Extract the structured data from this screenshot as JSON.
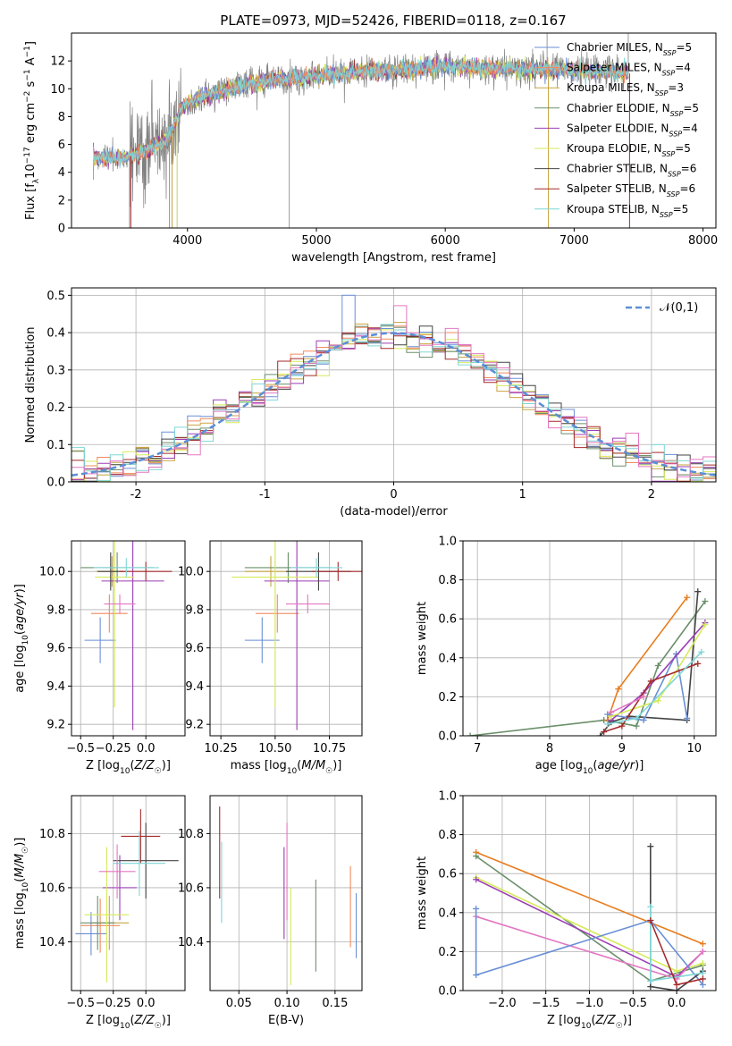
{
  "title": "PLATE=0973, MJD=52426, FIBERID=0118, z=0.167",
  "colors": {
    "chabrier_miles": "#6a8fd6",
    "salpeter_miles": "#f08a5d",
    "kroupa_miles": "#c7a442",
    "chabrier_elodie": "#6b8f6b",
    "salpeter_elodie": "#9b3fb5",
    "kroupa_elodie": "#d6ea5a",
    "chabrier_stelib": "#444444",
    "salpeter_stelib": "#a52a2a",
    "kroupa_stelib": "#7fd6d6",
    "data": "#808080",
    "normal": "#5b8fd6",
    "orange_line": "#e87c1e",
    "pink_line": "#e377c2"
  },
  "legend": [
    {
      "label": "Chabrier MILES, N_SSP=5",
      "color_key": "chabrier_miles"
    },
    {
      "label": "Salpeter MILES, N_SSP=4",
      "color_key": "salpeter_miles"
    },
    {
      "label": "Kroupa MILES, N_SSP=3",
      "color_key": "kroupa_miles"
    },
    {
      "label": "Chabrier ELODIE, N_SSP=5",
      "color_key": "chabrier_elodie"
    },
    {
      "label": "Salpeter ELODIE, N_SSP=4",
      "color_key": "salpeter_elodie"
    },
    {
      "label": "Kroupa ELODIE, N_SSP=5",
      "color_key": "kroupa_elodie"
    },
    {
      "label": "Chabrier STELIB, N_SSP=6",
      "color_key": "chabrier_stelib"
    },
    {
      "label": "Salpeter STELIB, N_SSP=6",
      "color_key": "salpeter_stelib"
    },
    {
      "label": "Kroupa STELIB, N_SSP=5",
      "color_key": "kroupa_stelib"
    }
  ],
  "chart_data": [
    {
      "id": "spectrum",
      "type": "line",
      "xlabel": "wavelength [Angstrom, rest frame]",
      "ylabel": "Flux [f_λ 10^-17 erg cm^-2 s^-1 A^-1]",
      "xlim": [
        3100,
        8100
      ],
      "ylim": [
        0,
        14
      ],
      "xticks": [
        4000,
        5000,
        6000,
        7000,
        8000
      ],
      "yticks": [
        0,
        2,
        4,
        6,
        8,
        10,
        12
      ],
      "grid": false,
      "legend_position": "right",
      "x_range_data": [
        3270,
        7420
      ],
      "continuum": [
        [
          3270,
          5.1
        ],
        [
          3500,
          5.0
        ],
        [
          3700,
          5.6
        ],
        [
          3850,
          6.4
        ],
        [
          3950,
          8.6
        ],
        [
          4100,
          9.4
        ],
        [
          4300,
          9.9
        ],
        [
          4600,
          10.6
        ],
        [
          5000,
          10.9
        ],
        [
          5500,
          11.3
        ],
        [
          6000,
          11.6
        ],
        [
          6500,
          11.4
        ],
        [
          7000,
          11.4
        ],
        [
          7420,
          11.1
        ]
      ]
    },
    {
      "id": "residuals",
      "type": "histogram",
      "xlabel": "(data-model)/error",
      "ylabel": "Normed distribution",
      "xlim": [
        -2.5,
        2.5
      ],
      "ylim": [
        0,
        0.52
      ],
      "xticks": [
        -2,
        -1,
        0,
        1,
        2
      ],
      "yticks": [
        0,
        0.1,
        0.2,
        0.3,
        0.4,
        0.5
      ],
      "grid": true,
      "legend": "𝒩(0,1)",
      "legend_position": "top-right",
      "bin_width": 0.1,
      "peak_value": 0.5
    },
    {
      "id": "age_vs_Z",
      "type": "errorbar",
      "xlabel": "Z [log10(Z/Z☉)]",
      "ylabel": "age [log10(age/yr)]",
      "xlim": [
        -0.57,
        0.3
      ],
      "ylim": [
        9.14,
        10.16
      ],
      "xticks": [
        -0.5,
        -0.25,
        0.0
      ],
      "yticks": [
        9.2,
        9.4,
        9.6,
        9.8,
        10.0
      ],
      "grid": true,
      "points": [
        {
          "key": "chabrier_miles",
          "x": -0.35,
          "y": 9.64,
          "xerr": 0.12,
          "yerr": 0.12
        },
        {
          "key": "salpeter_miles",
          "x": -0.28,
          "y": 9.78,
          "xerr": 0.14,
          "yerr": 0.1
        },
        {
          "key": "kroupa_miles",
          "x": -0.26,
          "y": 10.0,
          "xerr": 0.12,
          "yerr": 0.08
        },
        {
          "key": "chabrier_elodie",
          "x": -0.22,
          "y": 10.02,
          "xerr": 0.28,
          "yerr": 0.08
        },
        {
          "key": "salpeter_elodie",
          "x": -0.1,
          "y": 9.95,
          "xerr": 0.24,
          "yerr": 0.78
        },
        {
          "key": "kroupa_elodie",
          "x": -0.24,
          "y": 9.97,
          "xerr": 0.15,
          "yerr": 0.68
        },
        {
          "key": "chabrier_stelib",
          "x": -0.27,
          "y": 10.0,
          "xerr": 0.1,
          "yerr": 0.1
        },
        {
          "key": "salpeter_stelib",
          "x": 0.0,
          "y": 10.0,
          "xerr": 0.2,
          "yerr": 0.05
        },
        {
          "key": "kroupa_stelib",
          "x": -0.15,
          "y": 10.02,
          "xerr": 0.25,
          "yerr": 0.05
        },
        {
          "key": "pink_line",
          "x": -0.2,
          "y": 9.83,
          "xerr": 0.12,
          "yerr": 0.05
        }
      ]
    },
    {
      "id": "age_vs_mass",
      "type": "errorbar",
      "xlabel": "mass [log10(M/M☉)]",
      "ylabel": "",
      "xlim": [
        10.2,
        10.9
      ],
      "ylim": [
        9.14,
        10.16
      ],
      "xticks": [
        10.25,
        10.5,
        10.75
      ],
      "yticks": [
        9.2,
        9.4,
        9.6,
        9.8,
        10.0
      ],
      "grid": true,
      "points": [
        {
          "key": "chabrier_miles",
          "x": 10.44,
          "y": 9.64,
          "xerr": 0.08,
          "yerr": 0.12
        },
        {
          "key": "salpeter_miles",
          "x": 10.51,
          "y": 9.78,
          "xerr": 0.1,
          "yerr": 0.1
        },
        {
          "key": "kroupa_miles",
          "x": 10.48,
          "y": 10.0,
          "xerr": 0.12,
          "yerr": 0.08
        },
        {
          "key": "chabrier_elodie",
          "x": 10.56,
          "y": 10.02,
          "xerr": 0.2,
          "yerr": 0.08
        },
        {
          "key": "salpeter_elodie",
          "x": 10.6,
          "y": 9.95,
          "xerr": 0.15,
          "yerr": 0.78
        },
        {
          "key": "kroupa_elodie",
          "x": 10.5,
          "y": 9.97,
          "xerr": 0.2,
          "yerr": 0.68
        },
        {
          "key": "chabrier_stelib",
          "x": 10.7,
          "y": 10.0,
          "xerr": 0.15,
          "yerr": 0.1
        },
        {
          "key": "salpeter_stelib",
          "x": 10.79,
          "y": 10.0,
          "xerr": 0.12,
          "yerr": 0.05
        },
        {
          "key": "kroupa_stelib",
          "x": 10.69,
          "y": 10.02,
          "xerr": 0.12,
          "yerr": 0.05
        },
        {
          "key": "pink_line",
          "x": 10.65,
          "y": 9.83,
          "xerr": 0.1,
          "yerr": 0.05
        }
      ]
    },
    {
      "id": "mass_weight_vs_age",
      "type": "line",
      "xlabel": "age [log10(age/yr)]",
      "ylabel": "mass weight",
      "xlim": [
        6.8,
        10.3
      ],
      "ylim": [
        0,
        1.0
      ],
      "xticks": [
        7,
        8,
        9,
        10
      ],
      "yticks": [
        0.0,
        0.2,
        0.4,
        0.6,
        0.8,
        1.0
      ],
      "grid": true,
      "series": [
        {
          "key": "chabrier_elodie",
          "x": [
            6.9,
            8.75,
            9.2,
            9.5,
            10.15
          ],
          "y": [
            0.0,
            0.08,
            0.05,
            0.36,
            0.69
          ]
        },
        {
          "key": "orange_line",
          "x": [
            8.8,
            8.95,
            9.9
          ],
          "y": [
            0.08,
            0.24,
            0.71
          ]
        },
        {
          "key": "chabrier_stelib",
          "x": [
            8.7,
            8.85,
            9.1,
            9.9,
            10.05
          ],
          "y": [
            0.0,
            0.07,
            0.1,
            0.08,
            0.74
          ]
        },
        {
          "key": "chabrier_miles",
          "x": [
            8.8,
            9.3,
            9.75,
            9.9
          ],
          "y": [
            0.11,
            0.08,
            0.42,
            0.09
          ]
        },
        {
          "key": "salpeter_elodie",
          "x": [
            8.85,
            9.3,
            10.15
          ],
          "y": [
            0.08,
            0.22,
            0.58
          ]
        },
        {
          "key": "kroupa_elodie",
          "x": [
            8.85,
            9.5,
            10.15
          ],
          "y": [
            0.1,
            0.18,
            0.57
          ]
        },
        {
          "key": "salpeter_stelib",
          "x": [
            8.75,
            9.0,
            9.4,
            10.05
          ],
          "y": [
            0.02,
            0.05,
            0.28,
            0.37
          ]
        },
        {
          "key": "kroupa_stelib",
          "x": [
            8.8,
            9.2,
            10.1
          ],
          "y": [
            0.06,
            0.09,
            0.43
          ]
        },
        {
          "key": "pink_line",
          "x": [
            8.85,
            9.3
          ],
          "y": [
            0.12,
            0.2
          ]
        }
      ]
    },
    {
      "id": "mass_vs_Z",
      "type": "errorbar",
      "xlabel": "Z [log10(Z/Z☉)]",
      "ylabel": "mass [log10(M/M☉)]",
      "xlim": [
        -0.57,
        0.3
      ],
      "ylim": [
        10.22,
        10.94
      ],
      "xticks": [
        -0.5,
        -0.25,
        0.0
      ],
      "yticks": [
        10.4,
        10.6,
        10.8
      ],
      "grid": true,
      "points": [
        {
          "key": "chabrier_miles",
          "x": -0.42,
          "y": 10.43,
          "xerr": 0.12,
          "yerr": 0.08
        },
        {
          "key": "salpeter_miles",
          "x": -0.35,
          "y": 10.46,
          "xerr": 0.15,
          "yerr": 0.1
        },
        {
          "key": "kroupa_miles",
          "x": -0.28,
          "y": 10.47,
          "xerr": 0.15,
          "yerr": 0.1
        },
        {
          "key": "chabrier_elodie",
          "x": -0.37,
          "y": 10.47,
          "xerr": 0.13,
          "yerr": 0.1
        },
        {
          "key": "salpeter_elodie",
          "x": -0.2,
          "y": 10.6,
          "xerr": 0.13,
          "yerr": 0.12
        },
        {
          "key": "kroupa_elodie",
          "x": -0.3,
          "y": 10.5,
          "xerr": 0.17,
          "yerr": 0.25
        },
        {
          "key": "chabrier_stelib",
          "x": 0.0,
          "y": 10.7,
          "xerr": 0.25,
          "yerr": 0.14
        },
        {
          "key": "salpeter_stelib",
          "x": -0.04,
          "y": 10.79,
          "xerr": 0.15,
          "yerr": 0.1
        },
        {
          "key": "kroupa_stelib",
          "x": -0.05,
          "y": 10.69,
          "xerr": 0.2,
          "yerr": 0.12
        },
        {
          "key": "pink_line",
          "x": -0.22,
          "y": 10.66,
          "xerr": 0.14,
          "yerr": 0.1
        }
      ]
    },
    {
      "id": "mass_vs_ebv",
      "type": "errorbar",
      "xlabel": "E(B-V)",
      "ylabel": "",
      "xlim": [
        0.02,
        0.178
      ],
      "ylim": [
        10.22,
        10.94
      ],
      "xticks": [
        0.05,
        0.1,
        0.15
      ],
      "yticks": [
        10.4,
        10.6,
        10.8
      ],
      "grid": true,
      "points": [
        {
          "key": "salpeter_stelib",
          "x": 0.03,
          "y": 10.73,
          "xerr": 0,
          "yerr": 0.17
        },
        {
          "key": "kroupa_stelib",
          "x": 0.032,
          "y": 10.62,
          "xerr": 0,
          "yerr": 0.15
        },
        {
          "key": "salpeter_elodie",
          "x": 0.097,
          "y": 10.58,
          "xerr": 0,
          "yerr": 0.17
        },
        {
          "key": "pink_line",
          "x": 0.1,
          "y": 10.66,
          "xerr": 0,
          "yerr": 0.18
        },
        {
          "key": "kroupa_elodie",
          "x": 0.104,
          "y": 10.42,
          "xerr": 0,
          "yerr": 0.18
        },
        {
          "key": "chabrier_elodie",
          "x": 0.13,
          "y": 10.46,
          "xerr": 0,
          "yerr": 0.17
        },
        {
          "key": "salpeter_miles",
          "x": 0.166,
          "y": 10.53,
          "xerr": 0,
          "yerr": 0.15
        },
        {
          "key": "chabrier_miles",
          "x": 0.172,
          "y": 10.46,
          "xerr": 0,
          "yerr": 0.12
        }
      ]
    },
    {
      "id": "mass_weight_vs_Z",
      "type": "line",
      "xlabel": "Z [log10(Z/Z☉)]",
      "ylabel": "mass weight",
      "xlim": [
        -2.45,
        0.45
      ],
      "ylim": [
        0,
        1.0
      ],
      "xticks": [
        -2.0,
        -1.5,
        -1.0,
        -0.5,
        0.0
      ],
      "yticks": [
        0.0,
        0.2,
        0.4,
        0.6,
        0.8,
        1.0
      ],
      "grid": true,
      "series": [
        {
          "key": "orange_line",
          "x": [
            -2.3,
            0.3
          ],
          "y": [
            0.71,
            0.24
          ]
        },
        {
          "key": "chabrier_elodie",
          "x": [
            -2.3,
            -0.3,
            0.3
          ],
          "y": [
            0.69,
            0.05,
            0.13
          ]
        },
        {
          "key": "kroupa_elodie",
          "x": [
            -2.3,
            0.0,
            0.3
          ],
          "y": [
            0.58,
            0.1,
            0.14
          ]
        },
        {
          "key": "salpeter_elodie",
          "x": [
            -2.3,
            0.0,
            0.3
          ],
          "y": [
            0.57,
            0.07,
            0.2
          ]
        },
        {
          "key": "pink_line",
          "x": [
            -2.3,
            0.0,
            0.3
          ],
          "y": [
            0.38,
            0.06,
            0.2
          ]
        },
        {
          "key": "chabrier_miles",
          "x": [
            -2.3,
            -2.3,
            -0.3,
            0.3
          ],
          "y": [
            0.42,
            0.08,
            0.36,
            0.03
          ]
        },
        {
          "key": "chabrier_stelib",
          "x": [
            -0.3,
            -0.3,
            0.0,
            0.3
          ],
          "y": [
            0.74,
            0.02,
            0.0,
            0.1
          ]
        },
        {
          "key": "kroupa_stelib",
          "x": [
            -0.3,
            -0.3,
            0.3
          ],
          "y": [
            0.43,
            0.05,
            0.09
          ]
        },
        {
          "key": "salpeter_stelib",
          "x": [
            -0.3,
            0.0,
            0.3
          ],
          "y": [
            0.36,
            0.03,
            0.06
          ]
        }
      ]
    }
  ]
}
